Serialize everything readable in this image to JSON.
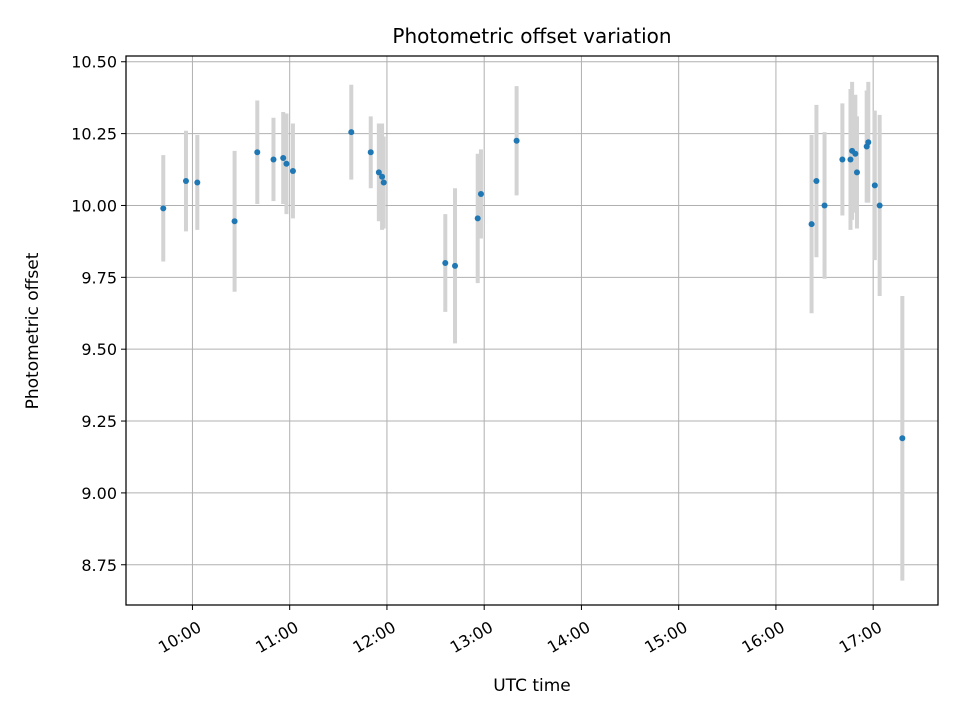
{
  "chart_data": {
    "type": "scatter",
    "title": "Photometric offset variation",
    "xlabel": "UTC time",
    "ylabel": "Photometric offset",
    "x_tick_labels": [
      "10:00",
      "11:00",
      "12:00",
      "13:00",
      "14:00",
      "15:00",
      "16:00",
      "17:00"
    ],
    "y_tick_labels": [
      "8.75",
      "9.00",
      "9.25",
      "9.50",
      "9.75",
      "10.00",
      "10.25",
      "10.50"
    ],
    "grid": true,
    "xlim": [
      "09:19",
      "17:40"
    ],
    "ylim": [
      8.61,
      10.52
    ],
    "colors": {
      "point": "#1f77b4",
      "errorbar": "#d3d3d3",
      "grid": "#b0b0b0"
    },
    "points": [
      {
        "x": "09:42",
        "y": 9.99,
        "err": 0.185
      },
      {
        "x": "09:56",
        "y": 10.085,
        "err": 0.175
      },
      {
        "x": "10:03",
        "y": 10.08,
        "err": 0.165
      },
      {
        "x": "10:26",
        "y": 9.945,
        "err": 0.245
      },
      {
        "x": "10:40",
        "y": 10.185,
        "err": 0.18
      },
      {
        "x": "10:50",
        "y": 10.16,
        "err": 0.145
      },
      {
        "x": "10:56",
        "y": 10.165,
        "err": 0.16
      },
      {
        "x": "10:58",
        "y": 10.145,
        "err": 0.175
      },
      {
        "x": "11:02",
        "y": 10.12,
        "err": 0.165
      },
      {
        "x": "11:38",
        "y": 10.255,
        "err": 0.165
      },
      {
        "x": "11:50",
        "y": 10.185,
        "err": 0.125
      },
      {
        "x": "11:55",
        "y": 10.115,
        "err": 0.17
      },
      {
        "x": "11:57",
        "y": 10.1,
        "err": 0.185
      },
      {
        "x": "11:58",
        "y": 10.08,
        "err": 0.16
      },
      {
        "x": "12:36",
        "y": 9.8,
        "err": 0.17
      },
      {
        "x": "12:42",
        "y": 9.79,
        "err": 0.27
      },
      {
        "x": "12:56",
        "y": 9.955,
        "err": 0.225
      },
      {
        "x": "12:58",
        "y": 10.04,
        "err": 0.155
      },
      {
        "x": "13:20",
        "y": 10.225,
        "err": 0.19
      },
      {
        "x": "16:22",
        "y": 9.935,
        "err": 0.31
      },
      {
        "x": "16:25",
        "y": 10.085,
        "err": 0.265
      },
      {
        "x": "16:30",
        "y": 10.0,
        "err": 0.255
      },
      {
        "x": "16:41",
        "y": 10.16,
        "err": 0.195
      },
      {
        "x": "16:46",
        "y": 10.16,
        "err": 0.245
      },
      {
        "x": "16:47",
        "y": 10.19,
        "err": 0.24
      },
      {
        "x": "16:49",
        "y": 10.18,
        "err": 0.205
      },
      {
        "x": "16:50",
        "y": 10.115,
        "err": 0.195
      },
      {
        "x": "16:56",
        "y": 10.205,
        "err": 0.195
      },
      {
        "x": "16:57",
        "y": 10.22,
        "err": 0.21
      },
      {
        "x": "17:01",
        "y": 10.07,
        "err": 0.26
      },
      {
        "x": "17:04",
        "y": 10.0,
        "err": 0.315
      },
      {
        "x": "17:18",
        "y": 9.19,
        "err": 0.495
      }
    ]
  }
}
